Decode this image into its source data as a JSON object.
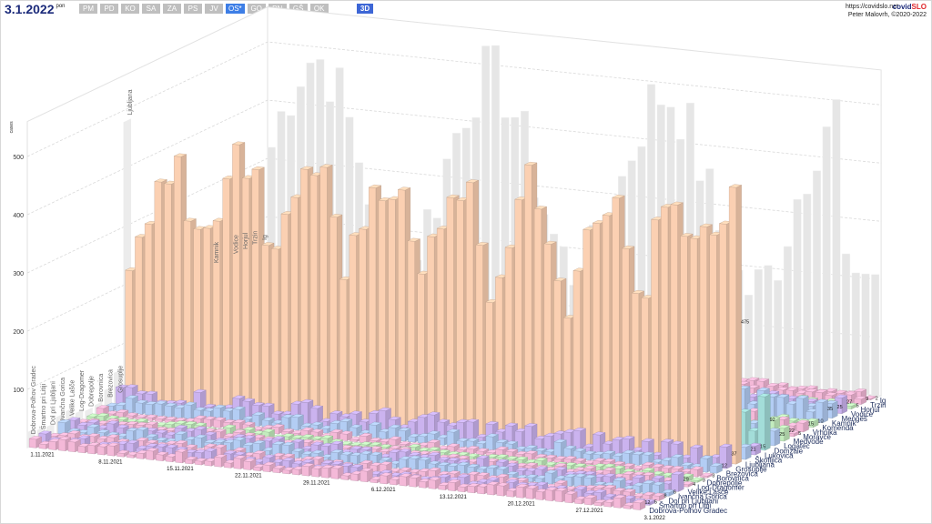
{
  "header": {
    "date": "3.1.2022",
    "weekday": "pon",
    "regions": [
      {
        "label": "PM",
        "active": false
      },
      {
        "label": "PD",
        "active": false
      },
      {
        "label": "KO",
        "active": false
      },
      {
        "label": "SA",
        "active": false
      },
      {
        "label": "ZA",
        "active": false
      },
      {
        "label": "PS",
        "active": false
      },
      {
        "label": "JV",
        "active": false
      },
      {
        "label": "OS*",
        "active": true
      },
      {
        "label": "GO",
        "active": false
      },
      {
        "label": "PN",
        "active": false
      },
      {
        "label": "GŠ",
        "active": false
      },
      {
        "label": "OK",
        "active": false
      }
    ],
    "mode_button": "3D",
    "url": "https://covidslo.net",
    "brand_a": "covid",
    "brand_b": "SLO",
    "author": "Peter Malovrh, ©2020-2022"
  },
  "colors": {
    "pink": "#f4b9d8",
    "violet": "#cbb3ef",
    "blue": "#b3cdf4",
    "green": "#c3ecbe",
    "teal": "#a3ddd9",
    "orange": "#fbd0b2",
    "gray": "#dcdcdc"
  },
  "chart_data": {
    "type": "bar3d",
    "ylabel": "cases",
    "yticks": [
      100,
      200,
      300,
      400,
      500
    ],
    "ylim": [
      0,
      560
    ],
    "dates": [
      "1.11.2021",
      "8.11.2021",
      "15.11.2021",
      "22.11.2021",
      "29.11.2021",
      "6.12.2021",
      "13.12.2021",
      "20.12.2021",
      "27.12.2021",
      "3.1.2022"
    ],
    "series": [
      {
        "name": "Dobrova-Polhov Gradec",
        "color": "pink",
        "last": 12,
        "level": 12
      },
      {
        "name": "Šmartno pri Litiji",
        "color": "violet",
        "last": 5,
        "level": 10
      },
      {
        "name": "Dol pri Ljubljani",
        "color": "pink",
        "last": 8,
        "level": 9
      },
      {
        "name": "Ivančna Gorica",
        "color": "blue",
        "last": 6,
        "level": 13
      },
      {
        "name": "Velike Lašče",
        "color": "violet",
        "last": 29,
        "level": 14
      },
      {
        "name": "Log-Dragomer",
        "color": "pink",
        "last": 4,
        "level": 9
      },
      {
        "name": "Dobrepolje",
        "color": "green",
        "last": 3,
        "level": 7
      },
      {
        "name": "Borovnica",
        "color": "pink",
        "last": 3,
        "level": 8
      },
      {
        "name": "Brezovica",
        "color": "blue",
        "last": 12,
        "level": 16
      },
      {
        "name": "Grosuplje",
        "color": "violet",
        "last": 37,
        "level": 26
      },
      {
        "name": "Ljubljana",
        "color": "orange",
        "last": 475,
        "level": 420
      },
      {
        "name": "Škofljica",
        "color": "blue",
        "last": 21,
        "level": 18
      },
      {
        "name": "Lukovica",
        "color": "violet",
        "last": 15,
        "level": 13
      },
      {
        "name": "Domžale",
        "color": "teal",
        "last": 92,
        "level": 55
      },
      {
        "name": "Logatec",
        "color": "blue",
        "last": 25,
        "level": 22
      },
      {
        "name": "Medvode",
        "color": "green",
        "last": 22,
        "level": 24
      },
      {
        "name": "Moravče",
        "color": "pink",
        "last": 5,
        "level": 9
      },
      {
        "name": "Vrhnika",
        "color": "pink",
        "last": 15,
        "level": 18
      },
      {
        "name": "Komenda",
        "color": "green",
        "last": 10,
        "level": 9
      },
      {
        "name": "Kamnik",
        "color": "blue",
        "last": 35,
        "level": 33
      },
      {
        "name": "Mengeš",
        "color": "blue",
        "last": 25,
        "level": 19
      },
      {
        "name": "Vodice",
        "color": "violet",
        "last": 27,
        "level": 16
      },
      {
        "name": "Horjul",
        "color": "green",
        "last": 5,
        "level": 8
      },
      {
        "name": "Trzin",
        "color": "pink",
        "last": 9,
        "level": 10
      },
      {
        "name": "Ig",
        "color": "pink",
        "last": 2,
        "level": 9
      }
    ],
    "back_labels": [
      "Ljubljana",
      "Kamnik",
      "Vodice",
      "Horjul",
      "Trzin",
      "Ig"
    ],
    "left_labels": [
      "Dobrova-Polhov Gradec",
      "Šmartno pri Litiji",
      "Dol pri Ljubljani",
      "Ivančna Gorica",
      "Velike Lašče",
      "Log-Dragomer",
      "Dobrepolje",
      "Borovnica",
      "Brezovica",
      "Grosuplje"
    ],
    "value_labels_shown": true
  }
}
